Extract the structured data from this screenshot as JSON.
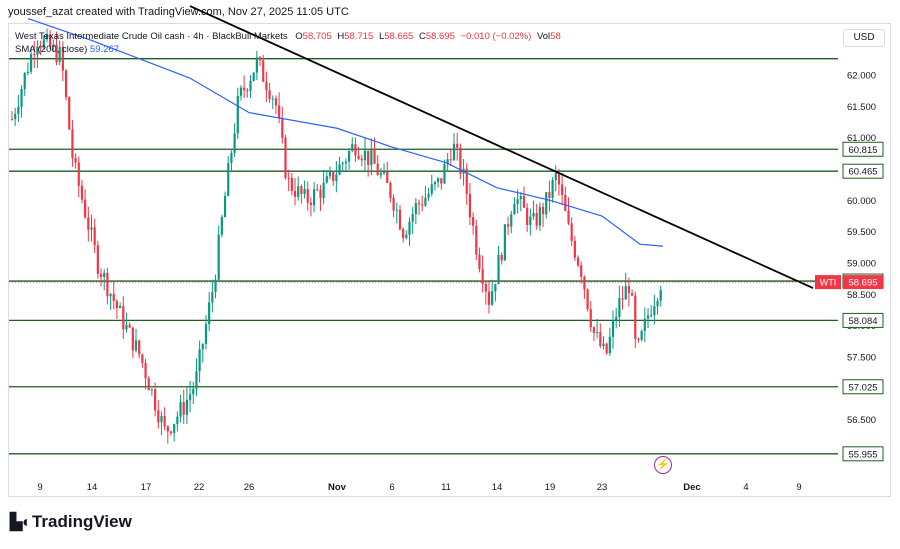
{
  "header": {
    "creator_line": "youssef_azat created with TradingView.com, Nov 27, 2025 11:05 UTC"
  },
  "legend": {
    "symbol": "West Texas Intermediate Crude Oil cash · 4h · BlackBull Markets",
    "o_label": "O",
    "o": "58.705",
    "h_label": "H",
    "h": "58.715",
    "l_label": "L",
    "l": "58.665",
    "c_label": "C",
    "c": "58.695",
    "change": "−0.010 (−0.02%)",
    "vol_label": "Vol",
    "vol": "58",
    "sma_label": "SMA (200, close)",
    "sma_value": "59.267"
  },
  "currency_button": "USD",
  "branding": {
    "name": "TradingView"
  },
  "colors": {
    "up": "#089981",
    "down": "#f23645",
    "sma": "#2962ff",
    "level": "#1b5e20",
    "trendline": "#000000"
  },
  "chart_data": {
    "type": "candlestick",
    "interval": "4h",
    "y_axis_ticks": [
      "62.000",
      "61.500",
      "61.000",
      "60.500",
      "60.000",
      "59.500",
      "59.000",
      "58.500",
      "58.000",
      "57.500",
      "57.000",
      "56.500",
      "56.000"
    ],
    "y_range": [
      55.7,
      62.6
    ],
    "x_axis_ticks": [
      "9",
      "14",
      "17",
      "22",
      "26",
      "Nov",
      "6",
      "11",
      "14",
      "19",
      "23",
      "Dec",
      "4",
      "9"
    ],
    "horizontal_levels": [
      62.26,
      60.815,
      60.465,
      58.712,
      58.084,
      57.025,
      55.955
    ],
    "level_labels": [
      "60.815",
      "60.465",
      "58.712",
      "58.084",
      "57.025",
      "55.955"
    ],
    "last_price": {
      "label": "WTI",
      "value": "58.695"
    },
    "trendline": {
      "from": {
        "x": "Oct 20",
        "y": 63.1
      },
      "to": {
        "x": "Dec 7",
        "y": 58.6
      }
    },
    "sma_200": [
      {
        "x": "Oct 7",
        "y": 62.9
      },
      {
        "x": "Oct 14",
        "y": 62.55
      },
      {
        "x": "Oct 20",
        "y": 61.95
      },
      {
        "x": "Oct 26",
        "y": 61.4
      },
      {
        "x": "Nov 1",
        "y": 61.15
      },
      {
        "x": "Nov 6",
        "y": 60.85
      },
      {
        "x": "Nov 11",
        "y": 60.6
      },
      {
        "x": "Nov 14",
        "y": 60.2
      },
      {
        "x": "Nov 19",
        "y": 60.0
      },
      {
        "x": "Nov 23",
        "y": 59.75
      },
      {
        "x": "Nov 26",
        "y": 59.3
      },
      {
        "x": "Nov 27",
        "y": 59.267
      }
    ],
    "path_points": [
      [
        0,
        61.3
      ],
      [
        4,
        62.6
      ],
      [
        8,
        62.3
      ],
      [
        10,
        60.6
      ],
      [
        14,
        59.0
      ],
      [
        18,
        58.1
      ],
      [
        21,
        57.5
      ],
      [
        23,
        56.9
      ],
      [
        25,
        56.3
      ],
      [
        28,
        56.7
      ],
      [
        30,
        57.1
      ],
      [
        33,
        58.7
      ],
      [
        35,
        60.2
      ],
      [
        37,
        61.6
      ],
      [
        40,
        62.2
      ],
      [
        43,
        61.6
      ],
      [
        45,
        60.3
      ],
      [
        48,
        60.0
      ],
      [
        51,
        60.2
      ],
      [
        54,
        60.6
      ],
      [
        56,
        60.9
      ],
      [
        59,
        60.6
      ],
      [
        62,
        60.1
      ],
      [
        64,
        59.5
      ],
      [
        66,
        59.9
      ],
      [
        68,
        60.1
      ],
      [
        70,
        60.3
      ],
      [
        72,
        60.9
      ],
      [
        74,
        60.3
      ],
      [
        76,
        59.2
      ],
      [
        78,
        58.4
      ],
      [
        80,
        59.2
      ],
      [
        82,
        60.1
      ],
      [
        85,
        59.6
      ],
      [
        87,
        59.9
      ],
      [
        89,
        60.4
      ],
      [
        91,
        59.5
      ],
      [
        93,
        58.9
      ],
      [
        95,
        57.9
      ],
      [
        97,
        57.5
      ],
      [
        99,
        58.3
      ],
      [
        101,
        58.7
      ],
      [
        102,
        57.5
      ],
      [
        104,
        58.2
      ],
      [
        106,
        58.7
      ]
    ]
  }
}
